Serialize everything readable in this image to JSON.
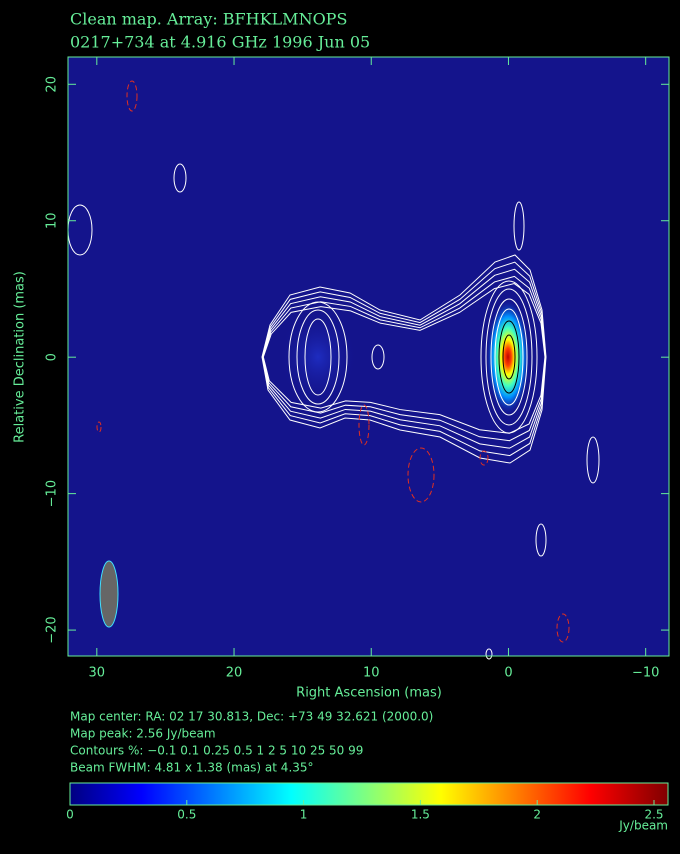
{
  "chart_data": {
    "type": "contour-map",
    "title": "Clean map.  Array: BFHKLMNOPS",
    "subtitle": "0217+734 at 4.916 GHz 1996 Jun 05",
    "x_label": "Right Ascension  (mas)",
    "y_label": "Relative Declination  (mas)",
    "xlim": [
      32.1,
      -11.7
    ],
    "ylim": [
      -21.9,
      22
    ],
    "xticks": [
      30,
      20,
      10,
      0,
      {
        "value": -10,
        "label": "−10"
      }
    ],
    "yticks": [
      {
        "value": -20,
        "label": "−20"
      },
      {
        "value": -10,
        "label": "−10"
      },
      0,
      10,
      20
    ],
    "notes": [
      "Map center:  RA: 02 17 30.813,  Dec: +73 49 32.621 (2000.0)",
      "Map peak: 2.56 Jy/beam",
      "Contours %: −0.1 0.1 0.25 0.5 1 2 5 10 25 50 99",
      "Beam FWHM: 4.81 x 1.38 (mas) at 4.35°"
    ],
    "colorbar": {
      "lim": [
        0,
        2.56
      ],
      "ticks": [
        0,
        0.5,
        1,
        1.5,
        2,
        2.5
      ],
      "label": "Jy/beam"
    },
    "axis_color": "#66ee99"
  }
}
